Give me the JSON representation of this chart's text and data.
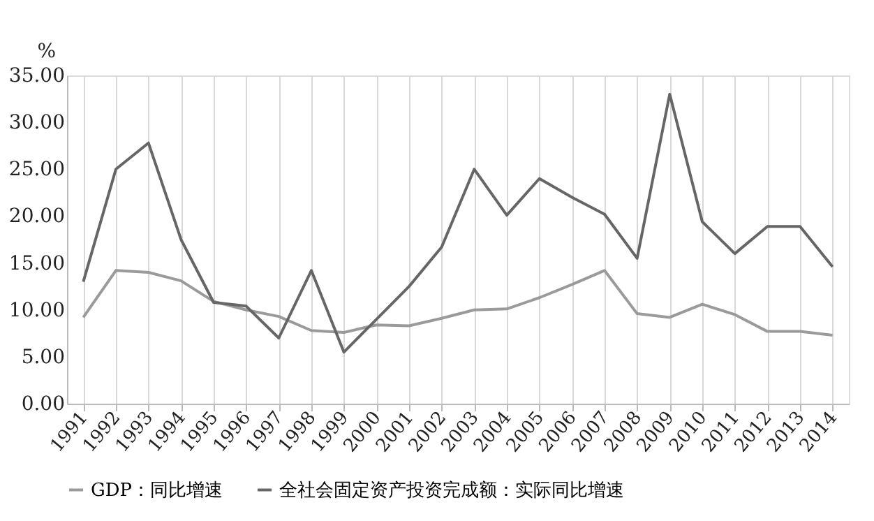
{
  "chart_data": {
    "type": "line",
    "ylabel": "%",
    "categories": [
      "1991",
      "1992",
      "1993",
      "1994",
      "1995",
      "1996",
      "1997",
      "1998",
      "1999",
      "2000",
      "2001",
      "2002",
      "2003",
      "2004",
      "2005",
      "2006",
      "2007",
      "2008",
      "2009",
      "2010",
      "2011",
      "2012",
      "2013",
      "2014"
    ],
    "series": [
      {
        "name": "GDP：同比增速",
        "color": "#9a9a9a",
        "values": [
          9.2,
          14.2,
          14.0,
          13.1,
          10.9,
          10.0,
          9.3,
          7.8,
          7.6,
          8.4,
          8.3,
          9.1,
          10.0,
          10.1,
          11.3,
          12.7,
          14.2,
          9.6,
          9.2,
          10.6,
          9.5,
          7.7,
          7.7,
          7.3
        ]
      },
      {
        "name": "全社会固定资产投资完成额：实际同比增速",
        "color": "#666666",
        "values": [
          13.0,
          25.0,
          27.8,
          17.5,
          10.8,
          10.4,
          7.0,
          14.2,
          5.5,
          9.0,
          12.5,
          16.7,
          25.0,
          20.1,
          24.0,
          22.0,
          20.2,
          15.5,
          33.0,
          19.4,
          16.0,
          18.9,
          18.9,
          14.6
        ]
      }
    ],
    "ylim": [
      0,
      35
    ],
    "yticks": [
      {
        "value": 0,
        "label": "0.00"
      },
      {
        "value": 5,
        "label": "5.00"
      },
      {
        "value": 10,
        "label": "10.00"
      },
      {
        "value": 15,
        "label": "15.00"
      },
      {
        "value": 20,
        "label": "20.00"
      },
      {
        "value": 25,
        "label": "25.00"
      },
      {
        "value": 30,
        "label": "30.00"
      },
      {
        "value": 35,
        "label": "35.00"
      }
    ],
    "grid": "x",
    "legend": "bottom",
    "marker": "none",
    "line_style": "solid"
  }
}
